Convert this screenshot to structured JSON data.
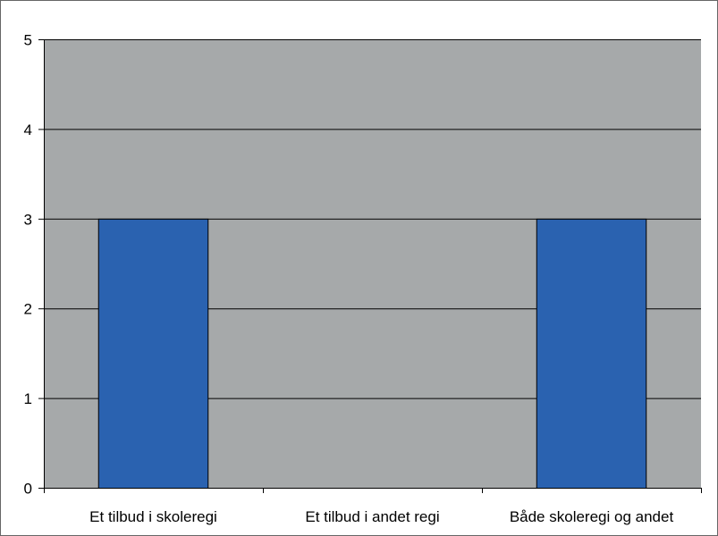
{
  "chart_data": {
    "type": "bar",
    "title": "",
    "xlabel": "",
    "ylabel": "",
    "categories": [
      "Et tilbud i skoleregi",
      "Et tilbud i andet regi",
      "Både skoleregi og andet"
    ],
    "values": [
      3,
      0,
      3
    ],
    "ylim": [
      0,
      5
    ],
    "yticks": [
      0,
      1,
      2,
      3,
      4,
      5
    ],
    "grid": true,
    "legend": "none",
    "colors": {
      "bar": "#2a62b0",
      "plot_background": "#a6a9aa",
      "gridline": "#000000",
      "bar_border": "#000000"
    }
  }
}
